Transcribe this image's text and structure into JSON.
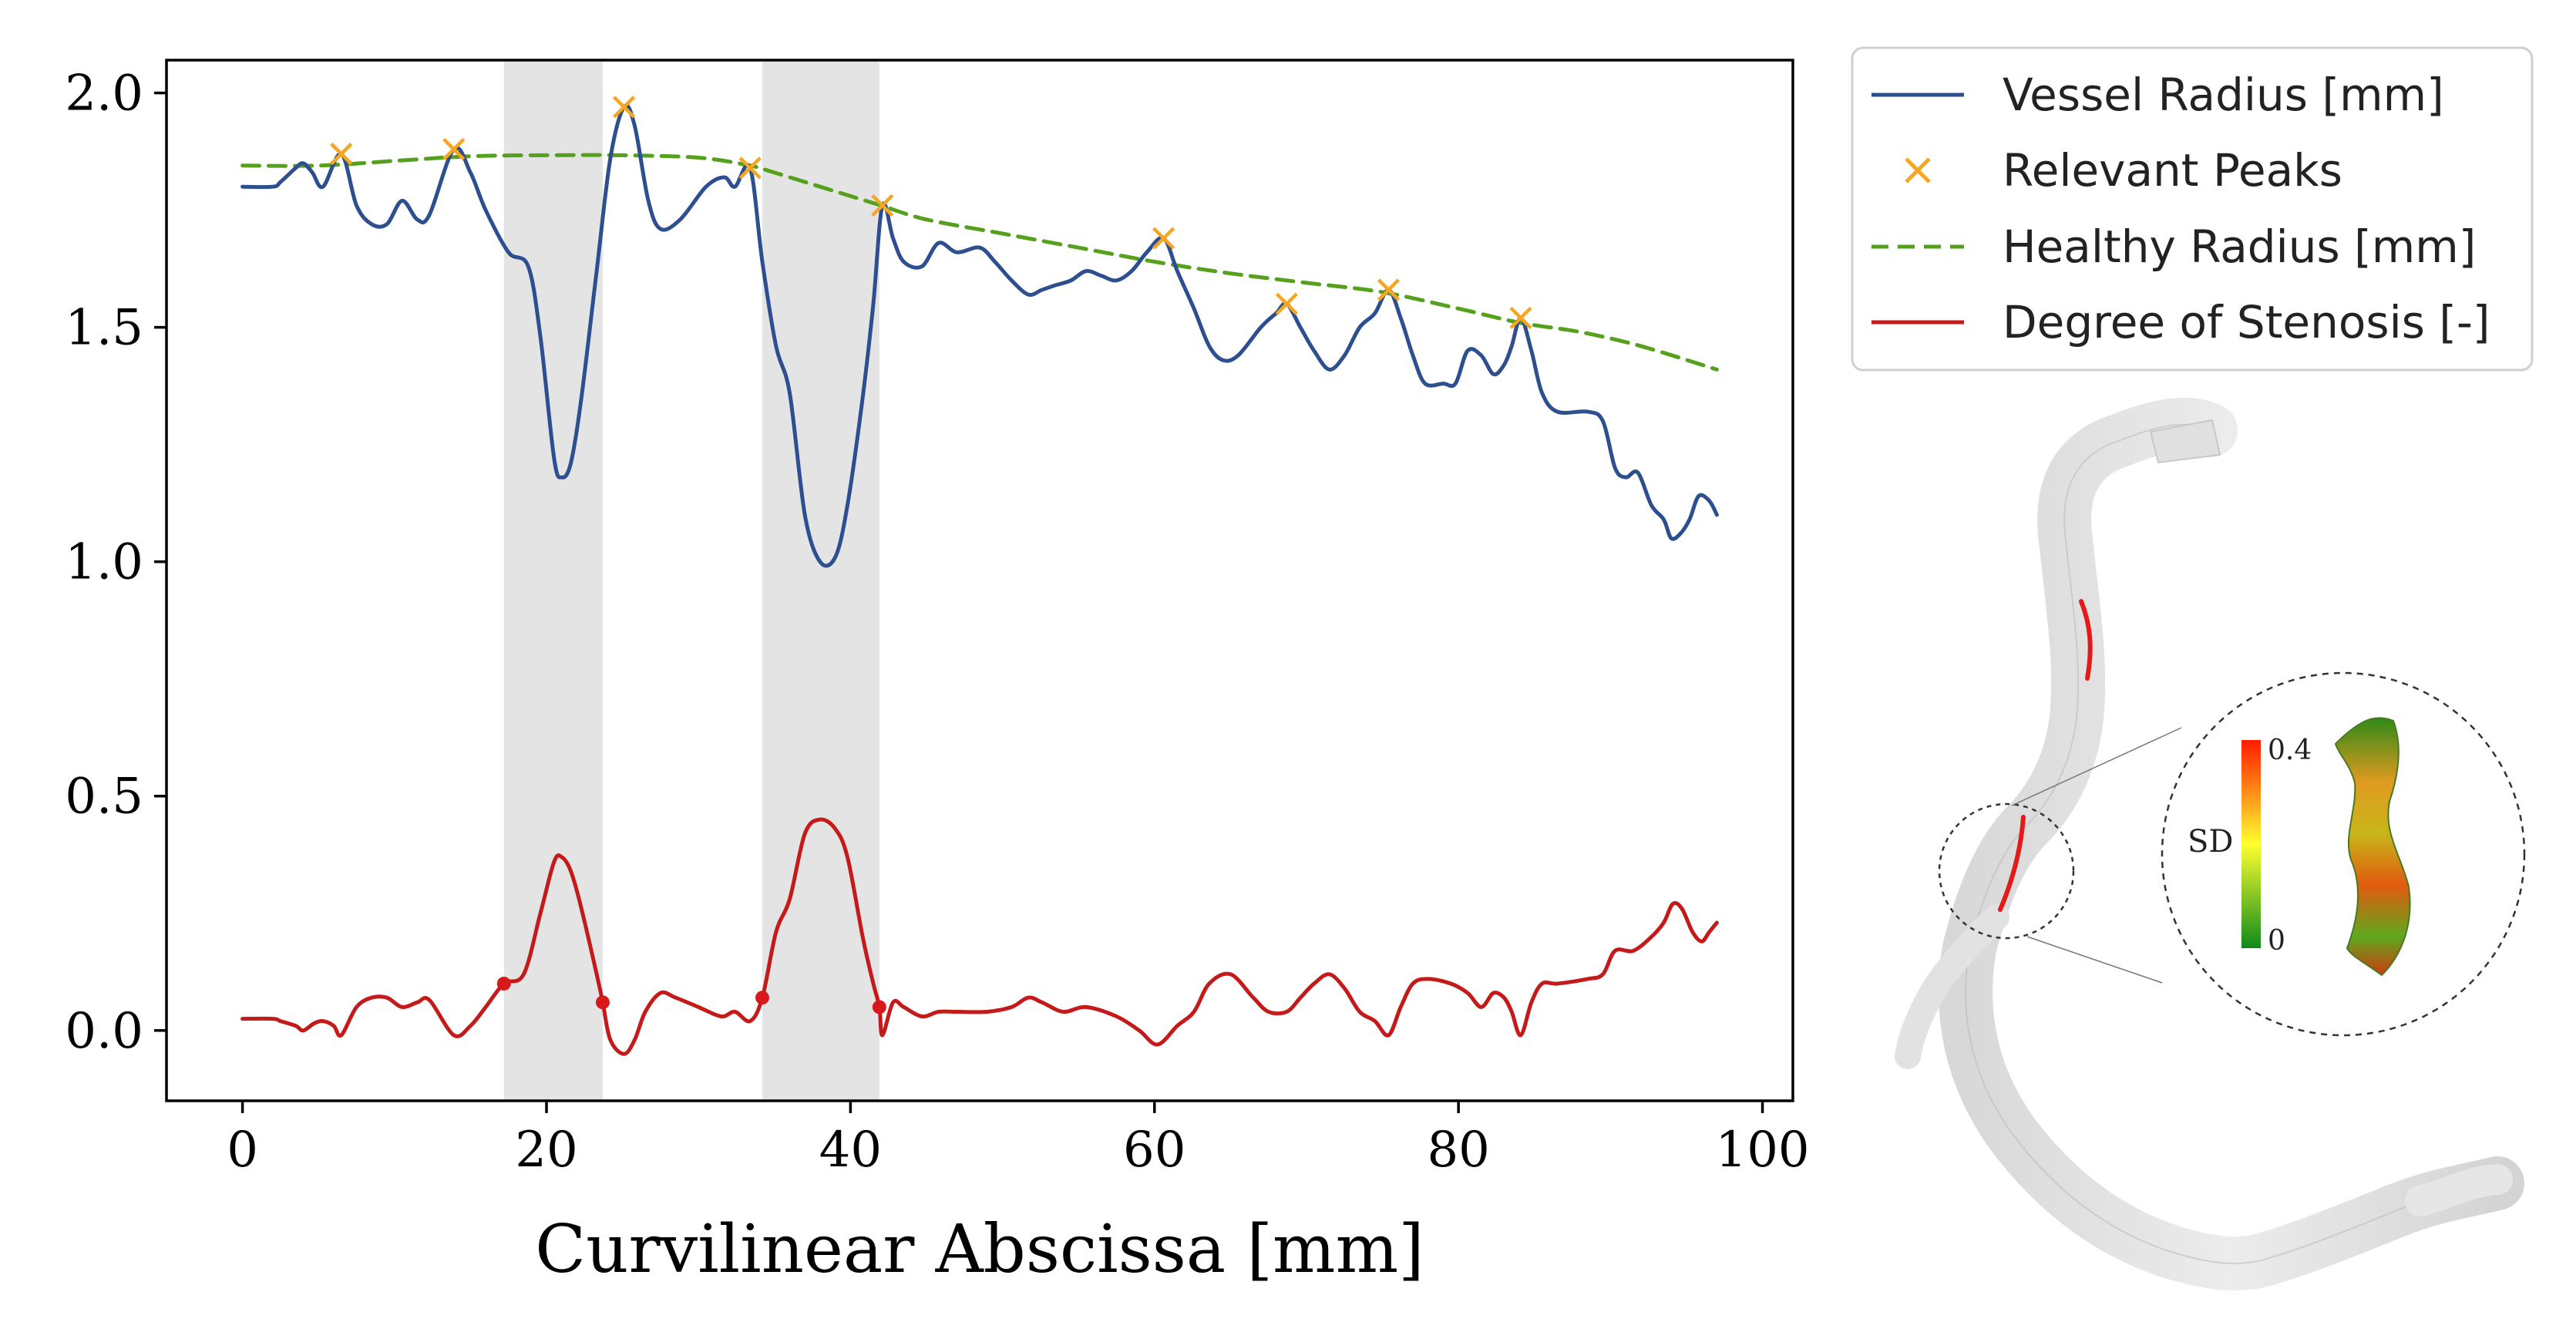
{
  "chart_data": {
    "type": "line",
    "xlabel": "Curvilinear Abscissa [mm]",
    "ylabel": "",
    "xlim": [
      -5,
      102
    ],
    "ylim": [
      -0.15,
      2.07
    ],
    "xticks": [
      0,
      20,
      40,
      60,
      80,
      100
    ],
    "yticks": [
      0.0,
      0.5,
      1.0,
      1.5,
      2.0
    ],
    "xtick_labels": [
      "0",
      "20",
      "40",
      "60",
      "80",
      "100"
    ],
    "ytick_labels": [
      "0.0",
      "0.5",
      "1.0",
      "1.5",
      "2.0"
    ],
    "grid": false,
    "legend_position": "outside-top-right",
    "shaded_regions": [
      [
        17.2,
        23.7
      ],
      [
        34.2,
        41.9
      ]
    ],
    "series": [
      {
        "name": "Vessel Radius [mm]",
        "style": "line",
        "color": "#2e4f8f",
        "points": [
          [
            0,
            1.8
          ],
          [
            2,
            1.8
          ],
          [
            2.5,
            1.81
          ],
          [
            3.5,
            1.84
          ],
          [
            4,
            1.85
          ],
          [
            4.6,
            1.83
          ],
          [
            5.3,
            1.8
          ],
          [
            6.5,
            1.87
          ],
          [
            7.5,
            1.76
          ],
          [
            8.5,
            1.72
          ],
          [
            9.5,
            1.72
          ],
          [
            10.5,
            1.77
          ],
          [
            11.5,
            1.73
          ],
          [
            12.3,
            1.74
          ],
          [
            13.9,
            1.88
          ],
          [
            15,
            1.83
          ],
          [
            16,
            1.75
          ],
          [
            17.5,
            1.66
          ],
          [
            18.8,
            1.63
          ],
          [
            19.6,
            1.48
          ],
          [
            20.5,
            1.22
          ],
          [
            21,
            1.18
          ],
          [
            21.6,
            1.21
          ],
          [
            22.3,
            1.35
          ],
          [
            23.3,
            1.62
          ],
          [
            24.2,
            1.86
          ],
          [
            25.1,
            1.97
          ],
          [
            25.8,
            1.93
          ],
          [
            26.7,
            1.77
          ],
          [
            27.5,
            1.71
          ],
          [
            28.8,
            1.73
          ],
          [
            30.5,
            1.8
          ],
          [
            31.7,
            1.82
          ],
          [
            32.4,
            1.8
          ],
          [
            33.4,
            1.84
          ],
          [
            34.2,
            1.64
          ],
          [
            35.1,
            1.46
          ],
          [
            36,
            1.36
          ],
          [
            37,
            1.1
          ],
          [
            38,
            1.0
          ],
          [
            39,
            1.01
          ],
          [
            39.8,
            1.12
          ],
          [
            40.8,
            1.35
          ],
          [
            41.5,
            1.55
          ],
          [
            42.1,
            1.76
          ],
          [
            42.8,
            1.69
          ],
          [
            43.5,
            1.64
          ],
          [
            44.7,
            1.63
          ],
          [
            45.8,
            1.68
          ],
          [
            47,
            1.66
          ],
          [
            48.5,
            1.67
          ],
          [
            49.5,
            1.64
          ],
          [
            50.6,
            1.6
          ],
          [
            51.7,
            1.57
          ],
          [
            52.6,
            1.58
          ],
          [
            53.5,
            1.59
          ],
          [
            54.5,
            1.6
          ],
          [
            55.5,
            1.62
          ],
          [
            56.5,
            1.61
          ],
          [
            57.5,
            1.6
          ],
          [
            58.5,
            1.62
          ],
          [
            59.5,
            1.66
          ],
          [
            60.6,
            1.69
          ],
          [
            61.5,
            1.62
          ],
          [
            62.6,
            1.54
          ],
          [
            63.6,
            1.46
          ],
          [
            64.5,
            1.43
          ],
          [
            65.5,
            1.44
          ],
          [
            67,
            1.5
          ],
          [
            68,
            1.53
          ],
          [
            68.7,
            1.55
          ],
          [
            69.6,
            1.5
          ],
          [
            70.5,
            1.45
          ],
          [
            71.5,
            1.41
          ],
          [
            72.5,
            1.44
          ],
          [
            73.5,
            1.5
          ],
          [
            74.5,
            1.53
          ],
          [
            75.4,
            1.58
          ],
          [
            76.2,
            1.52
          ],
          [
            77,
            1.44
          ],
          [
            77.8,
            1.38
          ],
          [
            79,
            1.38
          ],
          [
            79.8,
            1.38
          ],
          [
            80.6,
            1.45
          ],
          [
            81.5,
            1.44
          ],
          [
            82.3,
            1.4
          ],
          [
            83,
            1.42
          ],
          [
            83.5,
            1.46
          ],
          [
            84.1,
            1.52
          ],
          [
            84.8,
            1.45
          ],
          [
            85.5,
            1.36
          ],
          [
            86.5,
            1.32
          ],
          [
            88.5,
            1.32
          ],
          [
            89.5,
            1.3
          ],
          [
            90.3,
            1.2
          ],
          [
            91,
            1.18
          ],
          [
            91.8,
            1.19
          ],
          [
            92.7,
            1.12
          ],
          [
            93.5,
            1.09
          ],
          [
            94,
            1.05
          ],
          [
            94.6,
            1.06
          ],
          [
            95.2,
            1.09
          ],
          [
            95.8,
            1.14
          ],
          [
            96.5,
            1.13
          ],
          [
            97,
            1.1
          ]
        ]
      },
      {
        "name": "Relevant Peaks",
        "style": "marker-x",
        "color": "#f5a623",
        "points": [
          [
            6.5,
            1.87
          ],
          [
            13.9,
            1.88
          ],
          [
            25.1,
            1.97
          ],
          [
            33.4,
            1.84
          ],
          [
            42.1,
            1.76
          ],
          [
            60.6,
            1.69
          ],
          [
            68.7,
            1.55
          ],
          [
            75.4,
            1.58
          ],
          [
            84.1,
            1.52
          ]
        ]
      },
      {
        "name": "Healthy Radius [mm]",
        "style": "dashed",
        "color": "#55a01c",
        "points": [
          [
            0,
            1.845
          ],
          [
            5,
            1.845
          ],
          [
            10,
            1.855
          ],
          [
            15,
            1.865
          ],
          [
            20,
            1.867
          ],
          [
            25,
            1.867
          ],
          [
            30,
            1.862
          ],
          [
            33.4,
            1.845
          ],
          [
            35,
            1.83
          ],
          [
            40,
            1.78
          ],
          [
            42,
            1.76
          ],
          [
            45,
            1.73
          ],
          [
            50,
            1.7
          ],
          [
            55,
            1.67
          ],
          [
            60,
            1.64
          ],
          [
            65,
            1.615
          ],
          [
            70,
            1.595
          ],
          [
            75,
            1.575
          ],
          [
            80,
            1.54
          ],
          [
            84,
            1.51
          ],
          [
            88,
            1.49
          ],
          [
            92,
            1.46
          ],
          [
            97,
            1.41
          ]
        ]
      },
      {
        "name": "Degree of Stenosis [-]",
        "style": "line",
        "color": "#c41a1a",
        "points": [
          [
            0,
            0.025
          ],
          [
            2,
            0.025
          ],
          [
            2.5,
            0.02
          ],
          [
            3.5,
            0.01
          ],
          [
            4,
            0.0
          ],
          [
            4.7,
            0.015
          ],
          [
            5.3,
            0.02
          ],
          [
            6,
            0.01
          ],
          [
            6.5,
            -0.01
          ],
          [
            7.5,
            0.05
          ],
          [
            8.5,
            0.07
          ],
          [
            9.5,
            0.07
          ],
          [
            10.5,
            0.05
          ],
          [
            11.5,
            0.06
          ],
          [
            12.3,
            0.065
          ],
          [
            13.9,
            -0.01
          ],
          [
            15,
            0.01
          ],
          [
            16,
            0.05
          ],
          [
            17.2,
            0.1
          ],
          [
            18.5,
            0.12
          ],
          [
            19.6,
            0.25
          ],
          [
            20.5,
            0.36
          ],
          [
            21,
            0.37
          ],
          [
            21.6,
            0.34
          ],
          [
            22.3,
            0.26
          ],
          [
            23.3,
            0.12
          ],
          [
            23.7,
            0.06
          ],
          [
            24.2,
            -0.02
          ],
          [
            25.1,
            -0.05
          ],
          [
            25.8,
            -0.02
          ],
          [
            26.5,
            0.04
          ],
          [
            27.5,
            0.08
          ],
          [
            28.5,
            0.07
          ],
          [
            30,
            0.05
          ],
          [
            31.5,
            0.03
          ],
          [
            32.4,
            0.04
          ],
          [
            33.4,
            0.02
          ],
          [
            34.2,
            0.07
          ],
          [
            35.1,
            0.21
          ],
          [
            36,
            0.28
          ],
          [
            37,
            0.42
          ],
          [
            38,
            0.45
          ],
          [
            39,
            0.43
          ],
          [
            39.8,
            0.37
          ],
          [
            40.8,
            0.2
          ],
          [
            41.5,
            0.1
          ],
          [
            41.9,
            0.05
          ],
          [
            42.1,
            -0.01
          ],
          [
            42.8,
            0.06
          ],
          [
            43.5,
            0.05
          ],
          [
            44.7,
            0.03
          ],
          [
            45.8,
            0.04
          ],
          [
            47,
            0.04
          ],
          [
            49,
            0.04
          ],
          [
            50.6,
            0.05
          ],
          [
            51.7,
            0.07
          ],
          [
            52.6,
            0.06
          ],
          [
            54,
            0.04
          ],
          [
            55.5,
            0.05
          ],
          [
            57.5,
            0.03
          ],
          [
            59,
            0.0
          ],
          [
            60.2,
            -0.03
          ],
          [
            61.5,
            0.01
          ],
          [
            62.6,
            0.04
          ],
          [
            63.6,
            0.1
          ],
          [
            65,
            0.12
          ],
          [
            66.5,
            0.07
          ],
          [
            67.5,
            0.04
          ],
          [
            68.7,
            0.04
          ],
          [
            69.6,
            0.07
          ],
          [
            70.5,
            0.1
          ],
          [
            71.5,
            0.12
          ],
          [
            72.5,
            0.09
          ],
          [
            73.5,
            0.04
          ],
          [
            74.5,
            0.02
          ],
          [
            75.4,
            -0.01
          ],
          [
            76.2,
            0.05
          ],
          [
            77,
            0.1
          ],
          [
            78,
            0.11
          ],
          [
            79.5,
            0.1
          ],
          [
            80.6,
            0.08
          ],
          [
            81.5,
            0.05
          ],
          [
            82.3,
            0.08
          ],
          [
            83,
            0.07
          ],
          [
            83.5,
            0.04
          ],
          [
            84.1,
            -0.01
          ],
          [
            84.8,
            0.06
          ],
          [
            85.5,
            0.1
          ],
          [
            86.5,
            0.1
          ],
          [
            88.5,
            0.11
          ],
          [
            89.5,
            0.12
          ],
          [
            90.3,
            0.17
          ],
          [
            91.5,
            0.17
          ],
          [
            92.7,
            0.2
          ],
          [
            93.5,
            0.23
          ],
          [
            94.1,
            0.27
          ],
          [
            94.7,
            0.26
          ],
          [
            95.4,
            0.21
          ],
          [
            96,
            0.19
          ],
          [
            96.5,
            0.21
          ],
          [
            97,
            0.23
          ]
        ]
      }
    ],
    "boundary_markers": {
      "color": "#d7191c",
      "points": [
        [
          17.2,
          0.1
        ],
        [
          23.7,
          0.06
        ],
        [
          34.2,
          0.07
        ],
        [
          41.9,
          0.05
        ]
      ]
    },
    "annotations": [
      {
        "label": "SD",
        "colorbar_max": "0.4",
        "colorbar_min": "0"
      }
    ]
  },
  "legend": {
    "entries": [
      "Vessel Radius [mm]",
      "Relevant Peaks",
      "Healthy Radius [mm]",
      "Degree of Stenosis [-]"
    ]
  },
  "inset": {
    "colorbar_title": "SD",
    "colorbar_max": "0.4",
    "colorbar_min": "0",
    "colors": {
      "high": "#ff2000",
      "mid": "#ffff00",
      "low": "#1a8a1a"
    }
  }
}
